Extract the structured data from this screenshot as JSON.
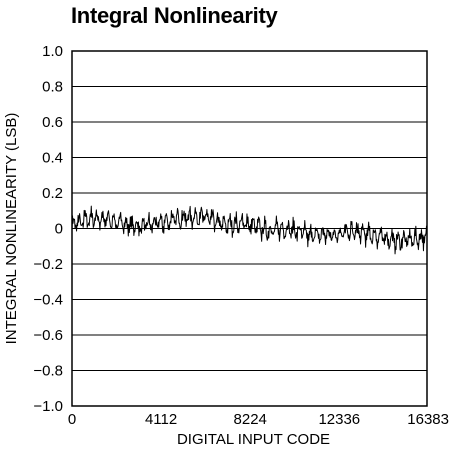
{
  "chart_data": {
    "type": "line",
    "title": "Integral Nonlinearity",
    "xlabel": "DIGITAL INPUT CODE",
    "ylabel": "INTEGRAL NONLINEARITY (LSB)",
    "xlim": [
      0,
      16383
    ],
    "ylim": [
      -1.0,
      1.0
    ],
    "x_ticks": [
      0,
      4112,
      8224,
      12336,
      16383
    ],
    "x_tick_labels": [
      "0",
      "4112",
      "8224",
      "12336",
      "16383"
    ],
    "y_ticks": [
      1.0,
      0.8,
      0.6,
      0.4,
      0.2,
      0,
      -0.2,
      -0.4,
      -0.6,
      -0.8,
      -1.0
    ],
    "y_tick_labels": [
      "1.0",
      "0.8",
      "0.6",
      "0.4",
      "0.2",
      "0",
      "−0.2",
      "−0.4",
      "−0.6",
      "−0.8",
      "−1.0"
    ],
    "grid": "horizontal",
    "series": [
      {
        "x": [
          0,
          1000,
          2000,
          3000,
          4000,
          5000,
          6000,
          7000,
          8000,
          9000,
          10000,
          11000,
          12000,
          13000,
          14000,
          15000,
          16383
        ],
        "y": [
          0.02,
          0.06,
          0.04,
          0.01,
          0.03,
          0.06,
          0.07,
          0.02,
          0.03,
          -0.01,
          0.0,
          -0.04,
          -0.03,
          -0.02,
          -0.04,
          -0.07,
          -0.05
        ]
      }
    ]
  },
  "colors": {
    "line": "#000000",
    "grid": "#000000",
    "background": "#ffffff"
  }
}
